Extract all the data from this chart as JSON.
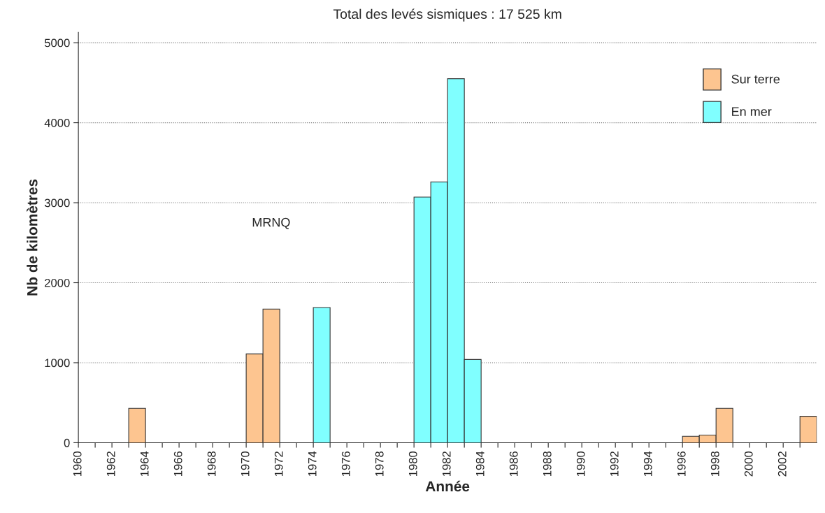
{
  "chart_data": {
    "type": "bar",
    "title": "Total des levés sismiques : 17 525 km",
    "xlabel": "Année",
    "ylabel": "Nb de kilomètres",
    "series": [
      {
        "name": "Sur terre",
        "color": "#fdc590",
        "x": [
          1963,
          1970,
          1971,
          1996,
          1997,
          1998,
          2003
        ],
        "values": [
          430,
          1110,
          1670,
          80,
          95,
          430,
          330
        ]
      },
      {
        "name": "En mer",
        "color": "#80ffff",
        "x": [
          1974,
          1980,
          1981,
          1982,
          1983
        ],
        "values": [
          1690,
          3070,
          3260,
          4550,
          1040
        ]
      }
    ],
    "annotations": [
      "MRNQ"
    ],
    "xlim": [
      1960,
      2004
    ],
    "xticks": [
      1960,
      {
        "value": 1961,
        "label": null
      },
      1962,
      {
        "value": 1963,
        "label": null
      },
      1964,
      {
        "value": 1965,
        "label": null
      },
      1966,
      {
        "value": 1967,
        "label": null
      },
      1968,
      {
        "value": 1969,
        "label": null
      },
      1970,
      {
        "value": 1971,
        "label": null
      },
      1972,
      {
        "value": 1973,
        "label": null
      },
      1974,
      {
        "value": 1975,
        "label": null
      },
      1976,
      {
        "value": 1977,
        "label": null
      },
      1978,
      {
        "value": 1979,
        "label": null
      },
      1980,
      {
        "value": 1981,
        "label": null
      },
      1982,
      {
        "value": 1983,
        "label": null
      },
      1984,
      {
        "value": 1985,
        "label": null
      },
      1986,
      {
        "value": 1987,
        "label": null
      },
      1988,
      {
        "value": 1989,
        "label": null
      },
      1990,
      {
        "value": 1991,
        "label": null
      },
      1992,
      {
        "value": 1993,
        "label": null
      },
      1994,
      {
        "value": 1995,
        "label": null
      },
      1996,
      {
        "value": 1997,
        "label": null
      },
      1998,
      {
        "value": 1999,
        "label": null
      },
      2000,
      {
        "value": 2001,
        "label": null
      },
      2002,
      {
        "value": 2003,
        "label": null
      }
    ],
    "ylim": [
      0,
      5130
    ],
    "yticks": [
      0,
      1000,
      2000,
      3000,
      4000,
      5000
    ],
    "grid": "y",
    "legend": "top right"
  }
}
